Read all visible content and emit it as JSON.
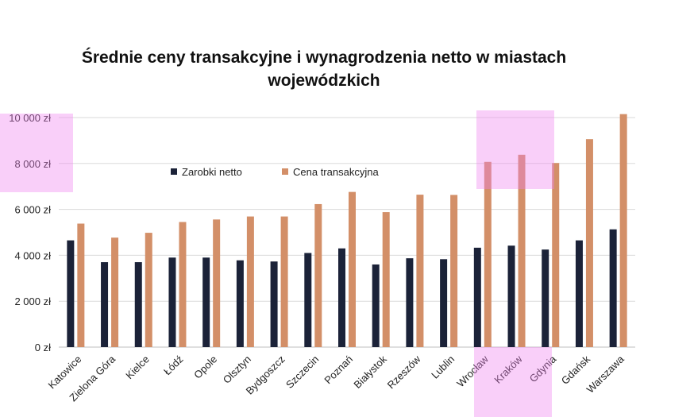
{
  "chart_data": {
    "type": "bar",
    "title_line1": "Średnie ceny transakcyjne i wynagrodzenia netto w miastach",
    "title_line2": "wojewódzkich",
    "categories": [
      "Katowice",
      "Zielona Góra",
      "Kielce",
      "Łódź",
      "Opole",
      "Olsztyn",
      "Bydgoszcz",
      "Szczecin",
      "Poznań",
      "Białystok",
      "Rzeszów",
      "Lublin",
      "Wrocław",
      "Kraków",
      "Gdynia",
      "Gdańsk",
      "Warszawa"
    ],
    "series": [
      {
        "name": "Zarobki netto",
        "color": "#1b2238",
        "values": [
          4650,
          3700,
          3700,
          3900,
          3900,
          3780,
          3730,
          4100,
          4300,
          3600,
          3870,
          3830,
          4330,
          4420,
          4250,
          4650,
          5130
        ]
      },
      {
        "name": "Cena transakcyjna",
        "color": "#d38f68",
        "values": [
          5380,
          4770,
          4980,
          5450,
          5560,
          5690,
          5690,
          6230,
          6760,
          5880,
          6640,
          6630,
          8070,
          8380,
          8020,
          9060,
          10150
        ]
      }
    ],
    "yticks": [
      "0 zł",
      "2 000 zł",
      "4 000 zł",
      "6 000 zł",
      "8 000 zł",
      "10 000 zł"
    ],
    "ytick_values": [
      0,
      2000,
      4000,
      6000,
      8000,
      10000
    ],
    "ylim": [
      0,
      10000
    ],
    "grid": true,
    "legend_position": "upper-left inside plot"
  },
  "highlight_color": "#ee82ee"
}
